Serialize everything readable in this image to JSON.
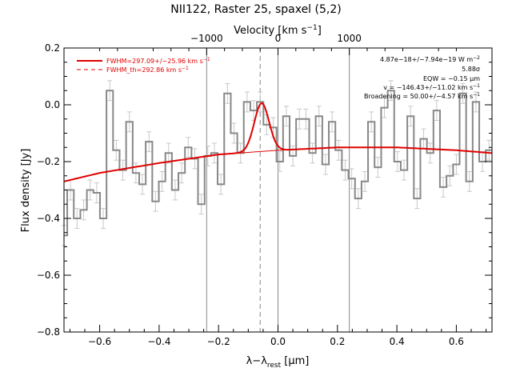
{
  "chart_data": {
    "type": "line",
    "title": "NII122, Raster 25, spaxel (5,2)",
    "xlabel": "λ−λ",
    "xlabel_sub": "rest",
    "xlabel_unit": " [μm]",
    "ylabel": "Flux density [Jy]",
    "top_axis_label": "Velocity [km s",
    "top_axis_label_sup": "−1",
    "top_axis_label_end": "]",
    "xlim": [
      -0.72,
      0.72
    ],
    "ylim": [
      -0.8,
      0.2
    ],
    "x_ticks": [
      -0.6,
      -0.4,
      -0.2,
      0.0,
      0.2,
      0.4,
      0.6
    ],
    "x_tick_labels": [
      "−0.6",
      "−0.4",
      "−0.2",
      "0.0",
      "0.2",
      "0.4",
      "0.6"
    ],
    "y_ticks": [
      -0.8,
      -0.6,
      -0.4,
      -0.2,
      0.0,
      0.2
    ],
    "y_tick_labels": [
      "−0.8",
      "−0.6",
      "−0.4",
      "−0.2",
      "0.0",
      "0.2"
    ],
    "top_ticks": [
      -1000,
      0,
      1000
    ],
    "top_tick_labels": [
      "−1000",
      "0",
      "1000"
    ],
    "vertical_lines": [
      {
        "x": -0.24,
        "style": "solid"
      },
      {
        "x": 0.0,
        "style": "solid"
      },
      {
        "x": 0.24,
        "style": "solid"
      },
      {
        "x": -0.06,
        "style": "dashed"
      }
    ],
    "spectrum": {
      "step_width": 0.0222,
      "x": [
        -0.72,
        -0.698,
        -0.676,
        -0.654,
        -0.632,
        -0.61,
        -0.588,
        -0.566,
        -0.544,
        -0.522,
        -0.5,
        -0.478,
        -0.456,
        -0.434,
        -0.412,
        -0.39,
        -0.368,
        -0.346,
        -0.324,
        -0.302,
        -0.28,
        -0.258,
        -0.236,
        -0.214,
        -0.192,
        -0.17,
        -0.148,
        -0.126,
        -0.104,
        -0.082,
        -0.06,
        -0.038,
        -0.016,
        0.006,
        0.028,
        0.05,
        0.072,
        0.094,
        0.116,
        0.138,
        0.16,
        0.182,
        0.204,
        0.226,
        0.248,
        0.27,
        0.292,
        0.314,
        0.336,
        0.358,
        0.38,
        0.402,
        0.424,
        0.446,
        0.468,
        0.49,
        0.512,
        0.534,
        0.556,
        0.578,
        0.6,
        0.622,
        0.644,
        0.666,
        0.688,
        0.71
      ],
      "y": [
        -0.46,
        -0.3,
        -0.4,
        -0.37,
        -0.3,
        -0.31,
        -0.4,
        0.05,
        -0.16,
        -0.23,
        -0.06,
        -0.24,
        -0.28,
        -0.13,
        -0.34,
        -0.27,
        -0.17,
        -0.3,
        -0.24,
        -0.15,
        -0.19,
        -0.35,
        -0.18,
        -0.17,
        -0.28,
        0.04,
        -0.1,
        -0.17,
        0.01,
        -0.02,
        0.01,
        -0.07,
        -0.08,
        -0.2,
        -0.04,
        -0.18,
        -0.05,
        -0.05,
        -0.17,
        -0.04,
        -0.21,
        -0.06,
        -0.16,
        -0.23,
        -0.26,
        -0.33,
        -0.27,
        -0.06,
        -0.22,
        -0.01,
        0.05,
        -0.2,
        -0.23,
        -0.04,
        -0.33,
        -0.12,
        -0.17,
        -0.02,
        -0.29,
        -0.25,
        -0.21,
        0.04,
        -0.27,
        0.01,
        -0.2,
        -0.16
      ],
      "err": 0.035
    },
    "fit": {
      "baseline_x": [
        -0.72,
        -0.6,
        -0.4,
        -0.2,
        0.0,
        0.2,
        0.4,
        0.6,
        0.72
      ],
      "baseline_y": [
        -0.27,
        -0.24,
        -0.205,
        -0.175,
        -0.16,
        -0.15,
        -0.15,
        -0.16,
        -0.17
      ],
      "gaussian_center": -0.055,
      "gaussian_peak": 0.17,
      "gaussian_sigma": 0.025
    },
    "legend": [
      {
        "label": "FWHM=297.09+/−25.96 km s",
        "label_sup": "−1",
        "style": "solid"
      },
      {
        "label": "FWHM_th=292.86 km s",
        "label_sup": "−1",
        "style": "dashed"
      }
    ],
    "annotations": [
      {
        "text": "4.87e−18+/−7.94e−19 W m",
        "sup": "−2"
      },
      {
        "text": "5.88σ",
        "sup": ""
      },
      {
        "text": "EQW = −0.15 μm",
        "sup": ""
      },
      {
        "text": "v = −146.43+/−11.02 km s",
        "sup": "−1"
      },
      {
        "text": "Broadening = 50.00+/−4.57 km s",
        "sup": "−1"
      }
    ],
    "colors": {
      "data": "#888888",
      "errorbar": "#c8c8c8",
      "fit": "#e00000",
      "vline": "#888888"
    }
  }
}
